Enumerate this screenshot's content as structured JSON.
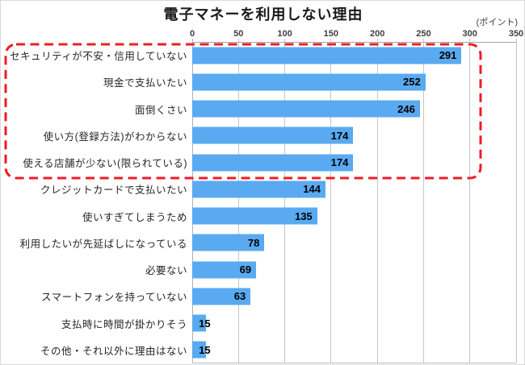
{
  "chart": {
    "title": "電子マネーを利用しない理由",
    "unit_label": "(ポイント)"
  },
  "chart_data": {
    "type": "bar",
    "orientation": "horizontal",
    "title": "電子マネーを利用しない理由",
    "xlabel": "ポイント",
    "xlim": [
      0,
      350
    ],
    "xticks": [
      0,
      50,
      100,
      150,
      200,
      250,
      300,
      350
    ],
    "grid": true,
    "legend": "none",
    "bar_color": "#59aaf0",
    "value_label_color": "#000000",
    "categories": [
      "セキュリティが不安・信用していない",
      "現金で支払いたい",
      "面倒くさい",
      "使い方(登録方法)がわからない",
      "使える店舗が少ない(限られている)",
      "クレジットカードで支払いたい",
      "使いすぎてしまうため",
      "利用したいが先延ばしになっている",
      "必要ない",
      "スマートフォンを持っていない",
      "支払時に時間が掛かりそう",
      "その他・それ以外に理由はない"
    ],
    "values": [
      291,
      252,
      246,
      174,
      174,
      144,
      135,
      78,
      69,
      63,
      15,
      15
    ],
    "highlight": {
      "shape": "dashed-rounded-rect",
      "color": "#ee1c25",
      "rows_enclosed_first": 0,
      "rows_enclosed_last": 4
    }
  }
}
